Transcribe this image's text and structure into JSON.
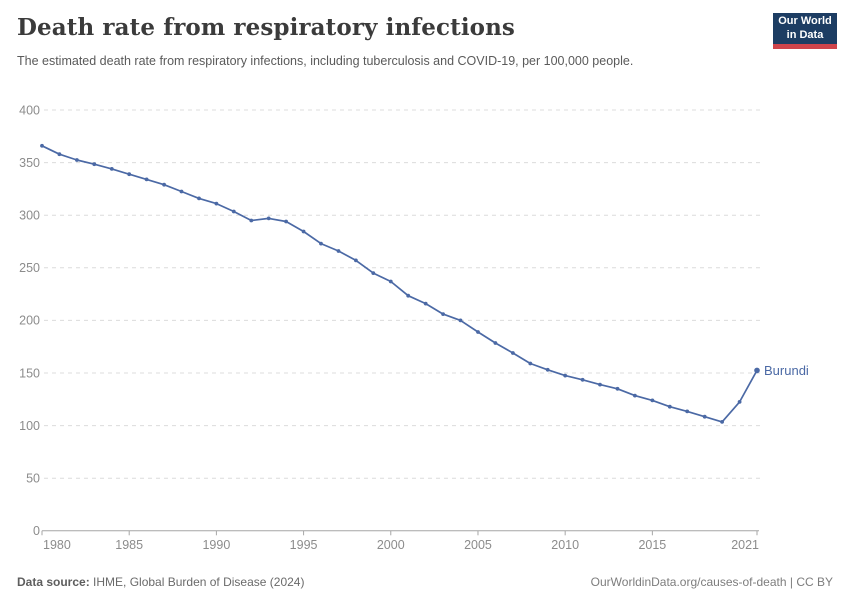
{
  "header": {
    "title": "Death rate from respiratory infections",
    "subtitle": "The estimated death rate from respiratory infections, including tuberculosis and COVID-19, per 100,000 people."
  },
  "logo": {
    "line1": "Our World",
    "line2": "in Data"
  },
  "chart_data": {
    "type": "line",
    "title": "Death rate from respiratory infections",
    "ylabel": "Death rate per 100,000 people",
    "x": [
      1980,
      1981,
      1982,
      1983,
      1984,
      1985,
      1986,
      1987,
      1988,
      1989,
      1990,
      1991,
      1992,
      1993,
      1994,
      1995,
      1996,
      1997,
      1998,
      1999,
      2000,
      2001,
      2002,
      2003,
      2004,
      2005,
      2006,
      2007,
      2008,
      2009,
      2010,
      2011,
      2012,
      2013,
      2014,
      2015,
      2016,
      2017,
      2018,
      2019,
      2020,
      2021
    ],
    "series": [
      {
        "name": "Burundi",
        "values": [
          366,
          358,
          352.5,
          348.5,
          344,
          339,
          334,
          329,
          322.5,
          316,
          311,
          303.5,
          295,
          297,
          294,
          284.5,
          273,
          266,
          257,
          245,
          237,
          223.5,
          216,
          206,
          200,
          189,
          178.5,
          169,
          159,
          153,
          147.5,
          143.5,
          139,
          135,
          128.5,
          124,
          118,
          113.5,
          108.5,
          103.5,
          122.5,
          152.5
        ]
      }
    ],
    "ylim": [
      0,
      400
    ],
    "yticks": [
      0,
      50,
      100,
      150,
      200,
      250,
      300,
      350,
      400
    ],
    "xticks": [
      1980,
      1985,
      1990,
      1995,
      2000,
      2005,
      2010,
      2015,
      2021
    ],
    "grid": true,
    "legend_position": "end-of-line-label",
    "end_label": "Burundi"
  },
  "footer": {
    "source_label": "Data source:",
    "source_text": " IHME, Global Burden of Disease (2024)",
    "credit": "OurWorldinData.org/causes-of-death | CC BY"
  },
  "colors": {
    "line": "#4b69a5",
    "grid": "#dcdcdc",
    "axis": "#a6a6a6",
    "tick_text": "#8c8c8c",
    "end_label_text": "#4b69a5",
    "logo_bg": "#1d3d63",
    "logo_red": "#cf444b"
  }
}
